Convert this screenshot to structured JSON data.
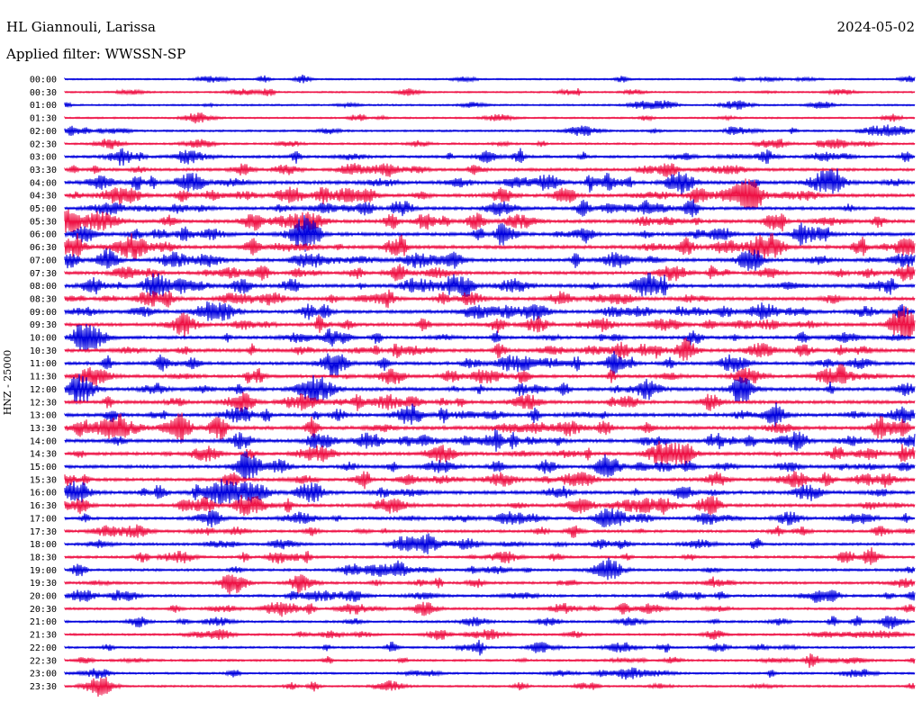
{
  "header": {
    "station": "HL Giannouli, Larissa",
    "filter": "Applied filter: WWSSN-SP",
    "date": "2024-05-02"
  },
  "colors": {
    "odd_line": "#0000dd",
    "even_line": "#ee1144",
    "background": "#ffffff"
  },
  "chart_data": {
    "type": "line",
    "title": "HL Giannouli, Larissa",
    "subtitle": "Applied filter: WWSSN-SP",
    "ylabel": "HNZ - 25000",
    "xlabel": "",
    "grid": false,
    "legend": "none",
    "categories": [
      "00:00",
      "00:30",
      "01:00",
      "01:30",
      "02:00",
      "02:30",
      "03:00",
      "03:30",
      "04:00",
      "04:30",
      "05:00",
      "05:30",
      "06:00",
      "06:30",
      "07:00",
      "07:30",
      "08:00",
      "08:30",
      "09:00",
      "09:30",
      "10:00",
      "10:30",
      "11:00",
      "11:30",
      "12:00",
      "12:30",
      "13:00",
      "13:30",
      "14:00",
      "14:30",
      "15:00",
      "15:30",
      "16:00",
      "16:30",
      "17:00",
      "17:30",
      "18:00",
      "18:30",
      "19:00",
      "19:30",
      "20:00",
      "20:30",
      "21:00",
      "21:30",
      "22:00",
      "22:30",
      "23:00",
      "23:30"
    ],
    "series": [
      {
        "activity": [
          0.15,
          0.15,
          0.2,
          0.2,
          0.3,
          0.3,
          0.55,
          0.6,
          0.8,
          0.75,
          0.7,
          0.8,
          0.8,
          0.8,
          0.75,
          0.7,
          0.8,
          0.8,
          0.75,
          0.75,
          0.7,
          0.8,
          0.75,
          0.7,
          0.8,
          0.75,
          0.8,
          0.85,
          0.8,
          0.75,
          0.7,
          0.7,
          0.8,
          0.7,
          0.6,
          0.55,
          0.5,
          0.5,
          0.5,
          0.5,
          0.5,
          0.4,
          0.4,
          0.35,
          0.35,
          0.35,
          0.3,
          0.3
        ]
      }
    ]
  }
}
